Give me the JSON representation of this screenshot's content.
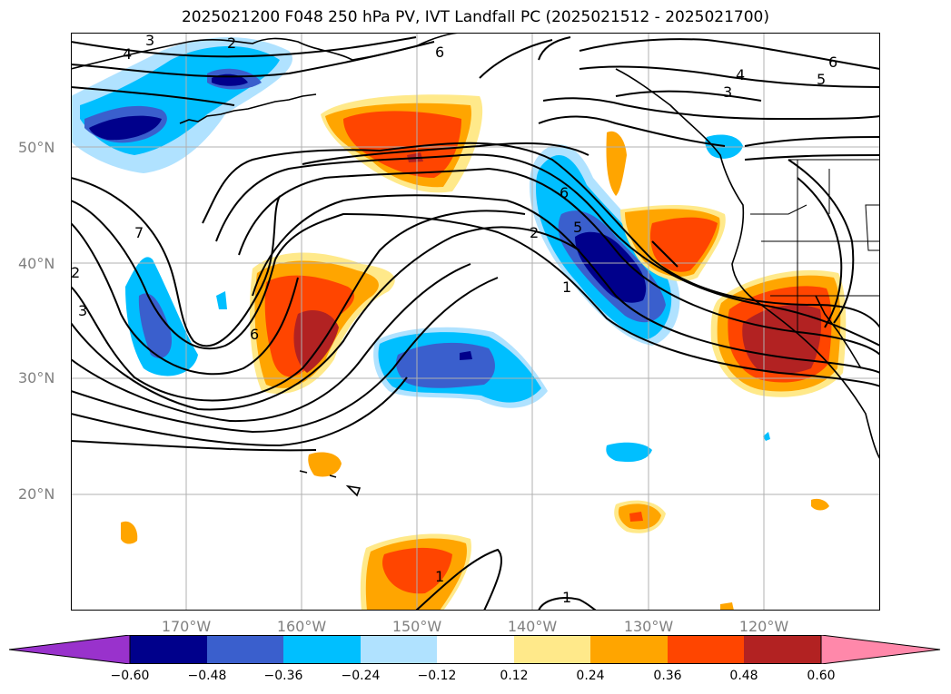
{
  "title": "2025021200 F048 250 hPa PV, IVT Landfall PC (2025021512 - 2025021700)",
  "lat_labels": [
    "50°N",
    "40°N",
    "30°N",
    "20°N"
  ],
  "lon_labels": [
    "170°W",
    "160°W",
    "150°W",
    "140°W",
    "130°W",
    "120°W"
  ],
  "contour_labels": [
    "3",
    "2",
    "4",
    "6",
    "4",
    "5",
    "6",
    "3",
    "7",
    "2",
    "3",
    "6",
    "6",
    "5",
    "2",
    "1",
    "1",
    "1"
  ],
  "colorbar": {
    "ticks": [
      "−0.60",
      "−0.48",
      "−0.36",
      "−0.24",
      "−0.12",
      "0.12",
      "0.24",
      "0.36",
      "0.48",
      "0.60"
    ],
    "colors": [
      "#9932cc",
      "#00008b",
      "#3a5fcd",
      "#00bfff",
      "#b0e2ff",
      "#ffffff",
      "#ffe98a",
      "#ffa500",
      "#ff4500",
      "#b22222",
      "#ff88aa"
    ]
  },
  "colors": {
    "dark_blue": "#00008b",
    "mid_blue": "#3a5fcd",
    "cyan": "#00bfff",
    "light_blue": "#b0e2ff",
    "light_yellow": "#ffe98a",
    "orange": "#ffa500",
    "red_orange": "#ff4500",
    "dark_red": "#b22222",
    "grid": "#b0b0b0"
  }
}
